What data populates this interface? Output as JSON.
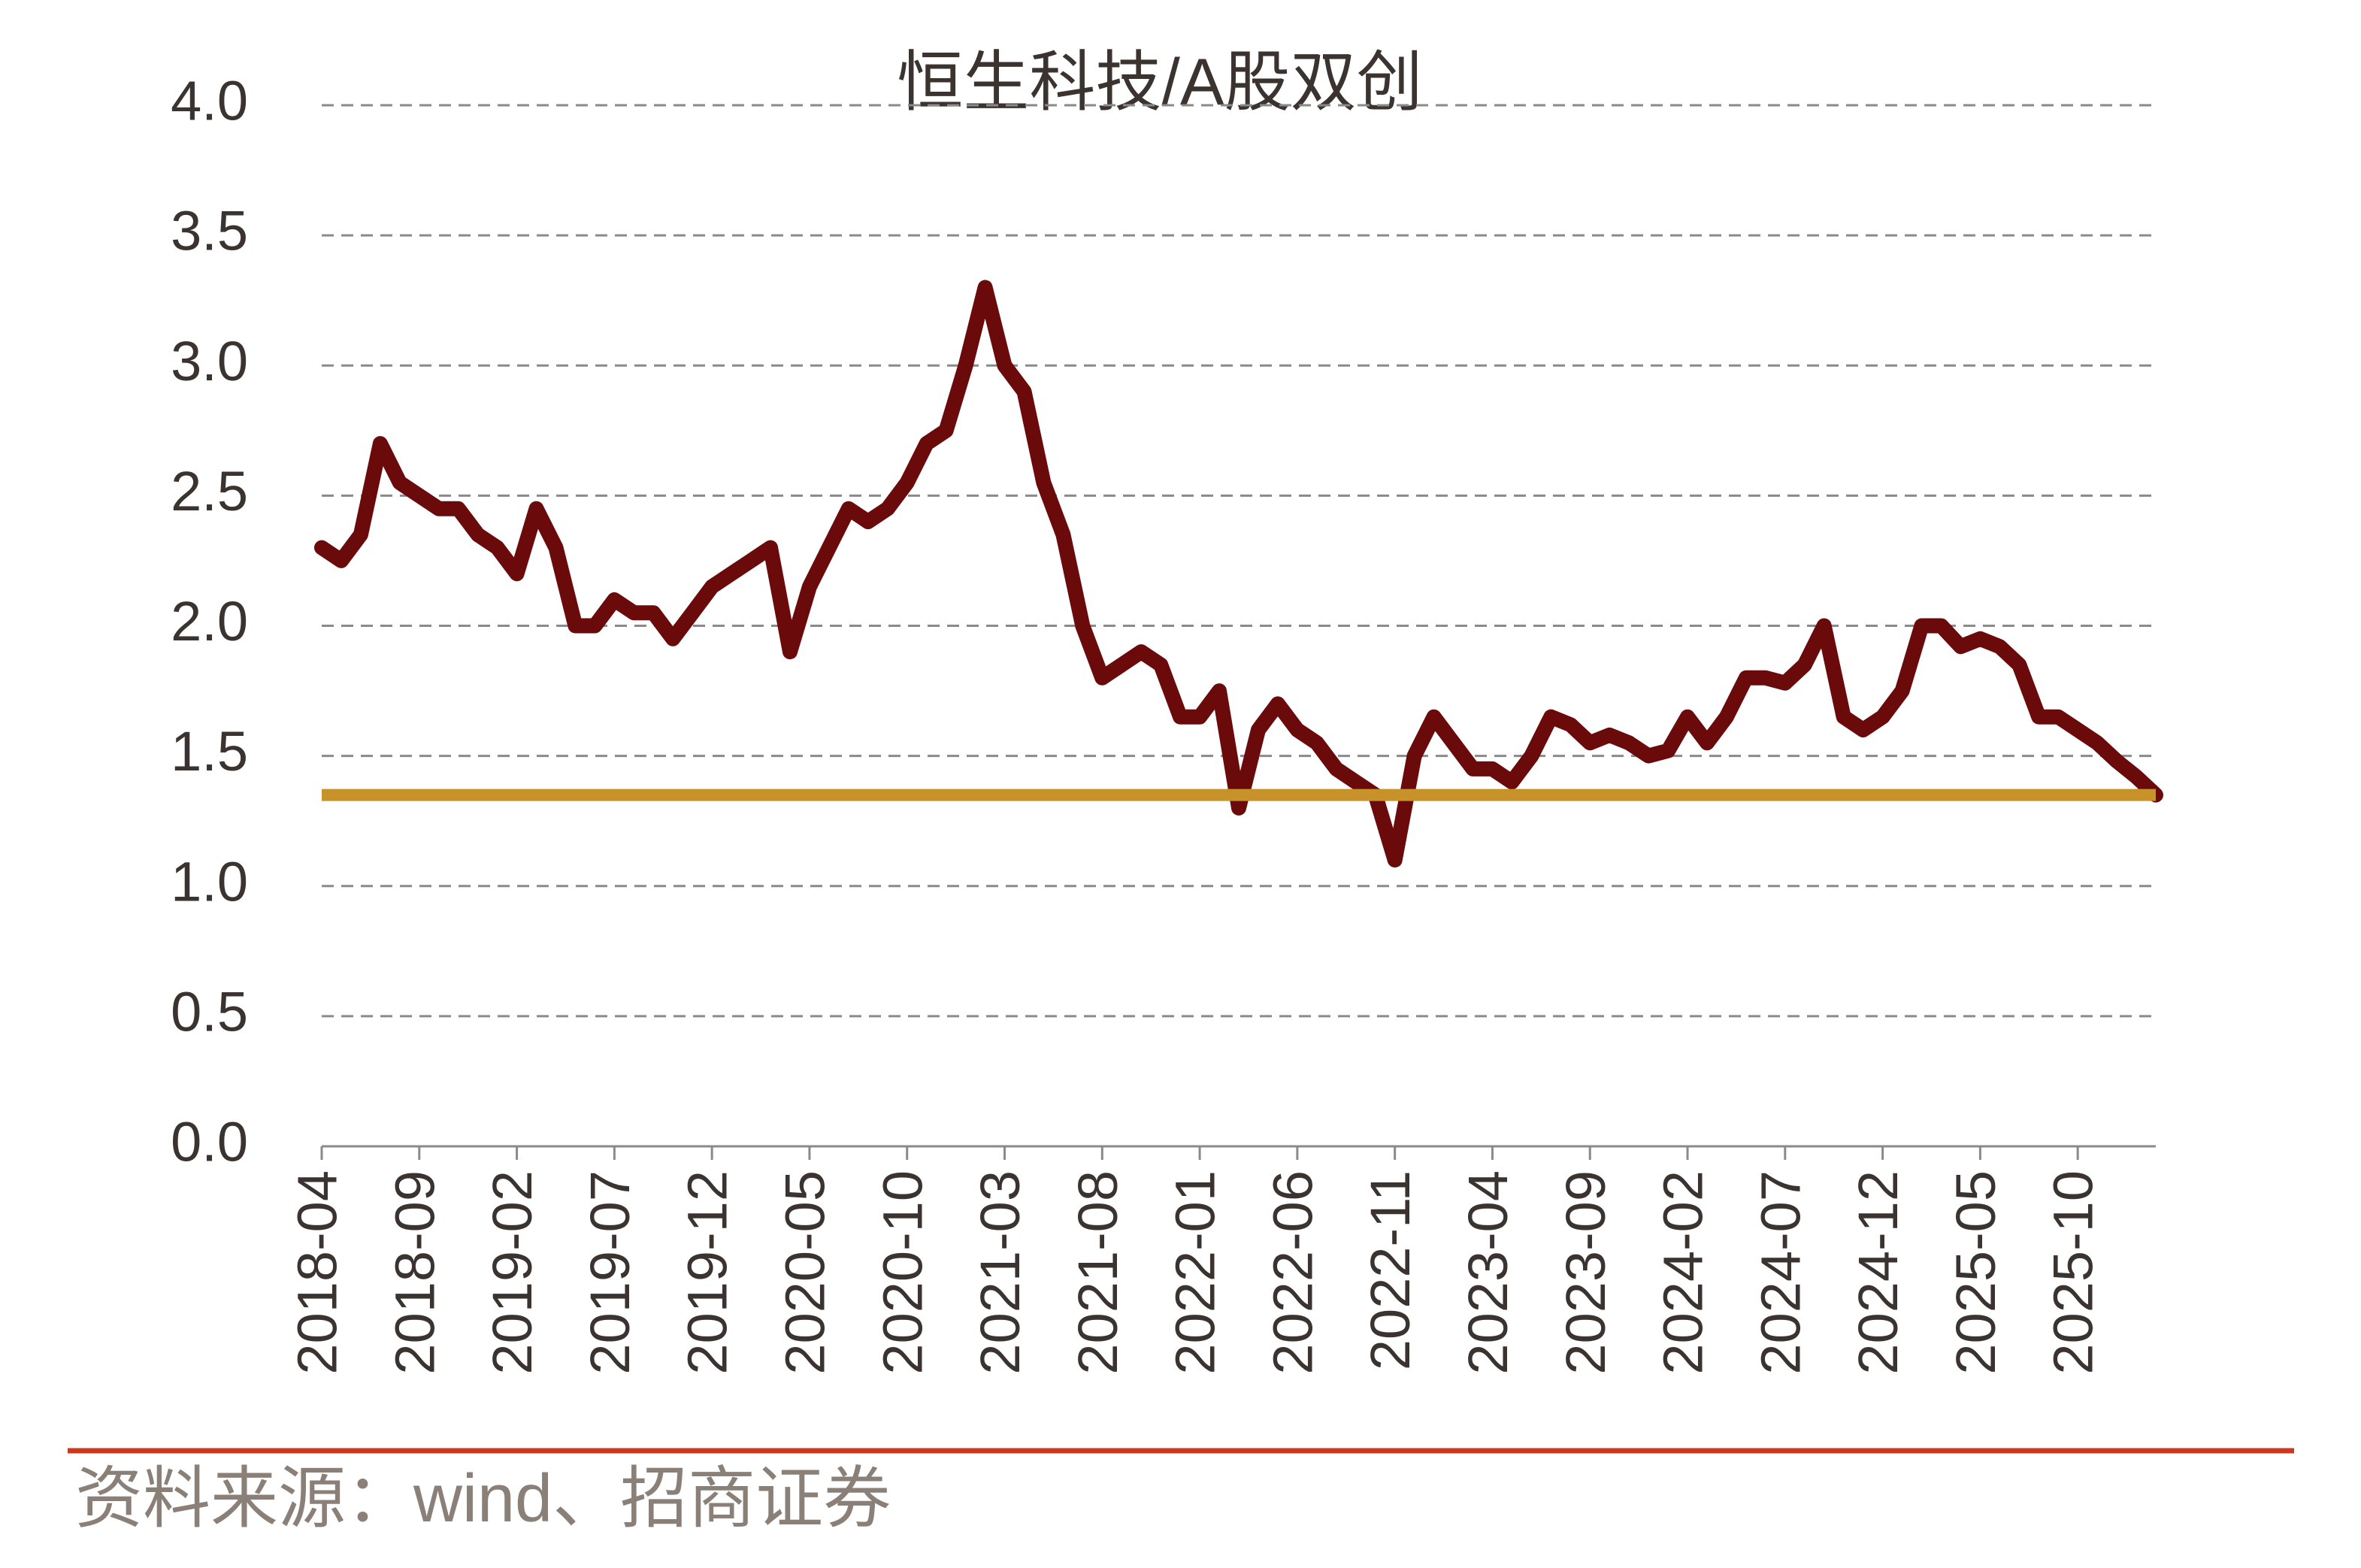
{
  "chart_data": {
    "type": "line",
    "title": "恒生科技/A股双创",
    "source": "资料来源：wind、招商证券",
    "categories": [
      "2018-04",
      null,
      null,
      null,
      null,
      "2018-09",
      null,
      null,
      null,
      null,
      "2019-02",
      null,
      null,
      null,
      null,
      "2019-07",
      null,
      null,
      null,
      null,
      "2019-12",
      null,
      null,
      null,
      null,
      "2020-05",
      null,
      null,
      null,
      null,
      "2020-10",
      null,
      null,
      null,
      null,
      "2021-03",
      null,
      null,
      null,
      null,
      "2021-08",
      null,
      null,
      null,
      null,
      "2022-01",
      null,
      null,
      null,
      null,
      "2022-06",
      null,
      null,
      null,
      null,
      "2022-11",
      null,
      null,
      null,
      null,
      "2023-04",
      null,
      null,
      null,
      null,
      "2023-09",
      null,
      null,
      null,
      null,
      "2024-02",
      null,
      null,
      null,
      null,
      "2024-07",
      null,
      null,
      null,
      null,
      "2024-12",
      null,
      null,
      null,
      null,
      "2025-05",
      null,
      null,
      null,
      null,
      "2025-10",
      null,
      null,
      null,
      null
    ],
    "values": [
      2.3,
      2.25,
      2.35,
      2.7,
      2.55,
      2.5,
      2.45,
      2.45,
      2.35,
      2.3,
      2.2,
      2.45,
      2.3,
      2.0,
      2.0,
      2.1,
      2.05,
      2.05,
      1.95,
      2.05,
      2.15,
      2.2,
      2.25,
      2.3,
      1.9,
      2.15,
      2.3,
      2.45,
      2.4,
      2.45,
      2.55,
      2.7,
      2.75,
      3.0,
      3.3,
      3.0,
      2.9,
      2.55,
      2.35,
      2.0,
      1.8,
      1.85,
      1.9,
      1.85,
      1.65,
      1.65,
      1.75,
      1.3,
      1.6,
      1.7,
      1.6,
      1.55,
      1.45,
      1.4,
      1.35,
      1.1,
      1.5,
      1.65,
      1.55,
      1.45,
      1.45,
      1.4,
      1.5,
      1.65,
      1.62,
      1.55,
      1.58,
      1.55,
      1.5,
      1.52,
      1.65,
      1.55,
      1.65,
      1.8,
      1.8,
      1.78,
      1.85,
      2.0,
      1.65,
      1.6,
      1.65,
      1.75,
      2.0,
      2.0,
      1.92,
      1.95,
      1.92,
      1.85,
      1.65,
      1.65,
      1.6,
      1.55,
      1.48,
      1.42,
      1.35
    ],
    "color": "#6b0a0a",
    "hline": {
      "value": 1.35,
      "color": "#c8922a"
    },
    "ylim": [
      0,
      4
    ],
    "yticks": [
      {
        "value": 0,
        "label": "0.0"
      },
      {
        "value": 0.5,
        "label": "0.5"
      },
      {
        "value": 1,
        "label": "1.0"
      },
      {
        "value": 1.5,
        "label": "1.5"
      },
      {
        "value": 2,
        "label": "2.0"
      },
      {
        "value": 2.5,
        "label": "2.5"
      },
      {
        "value": 3,
        "label": "3.0"
      },
      {
        "value": 3.5,
        "label": "3.5"
      },
      {
        "value": 4,
        "label": "4.0"
      }
    ],
    "grid": true
  }
}
